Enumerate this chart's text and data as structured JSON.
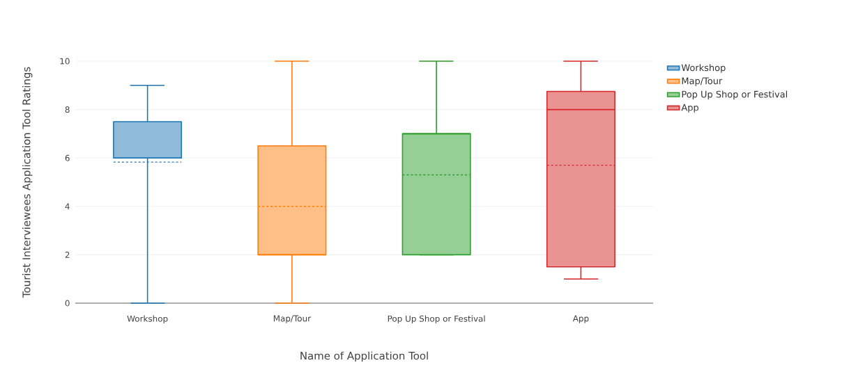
{
  "chart_data": {
    "type": "box",
    "xlabel": "Name of Application Tool",
    "ylabel": "Tourist Interviewees Application Tool Ratings",
    "categories": [
      "Workshop",
      "Map/Tour",
      "Pop Up Shop or Festival",
      "App"
    ],
    "series": [
      {
        "name": "Workshop",
        "color": "#1f77b4",
        "boxes": [
          {
            "low": 0,
            "q1": 6,
            "median": 6,
            "q3": 7.5,
            "high": 9,
            "mean": 5.83
          },
          null,
          null,
          null
        ]
      },
      {
        "name": "Map/Tour",
        "color": "#ff7f0e",
        "boxes": [
          null,
          {
            "low": 0,
            "q1": 2,
            "median": 2,
            "q3": 6.5,
            "high": 10,
            "mean": 4
          },
          null,
          null
        ]
      },
      {
        "name": "Pop Up Shop or Festival",
        "color": "#2ca02c",
        "boxes": [
          null,
          null,
          {
            "low": 2,
            "q1": 2,
            "median": 7,
            "q3": 7,
            "high": 10,
            "mean": 5.3
          },
          null
        ]
      },
      {
        "name": "App",
        "color": "#d62728",
        "boxes": [
          null,
          null,
          null,
          {
            "low": 1,
            "q1": 1.5,
            "median": 8,
            "q3": 8.75,
            "high": 10,
            "mean": 5.7
          }
        ]
      }
    ],
    "ylim": [
      0,
      10
    ],
    "yticks": [
      0,
      2,
      4,
      6,
      8,
      10
    ],
    "grid": "y",
    "legend": "top right"
  }
}
